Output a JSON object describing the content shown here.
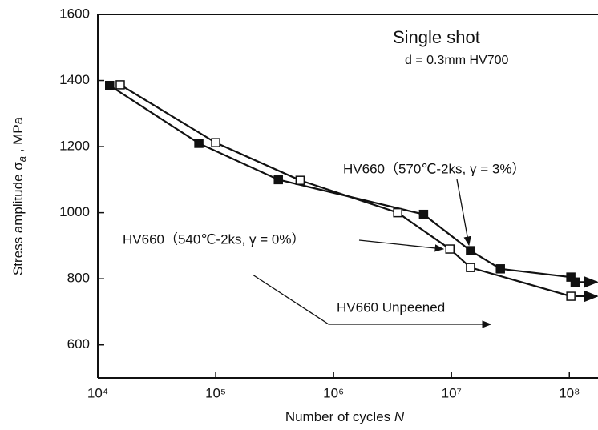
{
  "chart_data": {
    "type": "line",
    "title": "Single shot",
    "subtitle": "d = 0.3mm  HV700",
    "y_label": {
      "text": "Stress amplitude σ",
      "subscript": "a",
      "suffix": " , MPa"
    },
    "x_label": {
      "text": "Number of cycles ",
      "symbol": "N"
    },
    "log_x": true,
    "xlim": [
      10000,
      175000000
    ],
    "xticks": [
      {
        "value": 10000,
        "label": "10⁴"
      },
      {
        "value": 100000,
        "label": "10⁵"
      },
      {
        "value": 1000000,
        "label": "10⁶"
      },
      {
        "value": 10000000,
        "label": "10⁷"
      },
      {
        "value": 100000000,
        "label": "10⁸"
      }
    ],
    "ylim": [
      500,
      1600
    ],
    "yticks": [
      600,
      800,
      1000,
      1200,
      1400,
      1600
    ],
    "series": [
      {
        "name": "HV660（570℃-2ks, γ = 3%）",
        "color": "#111111",
        "marker": "filled",
        "x": [
          12600,
          72000,
          340000,
          5800000,
          14500000,
          26000000,
          103000000,
          112000000
        ],
        "values": [
          1385,
          1210,
          1100,
          995,
          885,
          830,
          805,
          790
        ]
      },
      {
        "name": "HV660（540℃-2ks, γ = 0%）",
        "color": "#111111",
        "marker": "open",
        "x": [
          15500,
          100000,
          520000,
          3500000,
          9700000,
          14500000,
          103000000
        ],
        "values": [
          1387,
          1212,
          1098,
          1000,
          890,
          834,
          747
        ]
      }
    ],
    "annotation": "HV660 Unpeened"
  }
}
